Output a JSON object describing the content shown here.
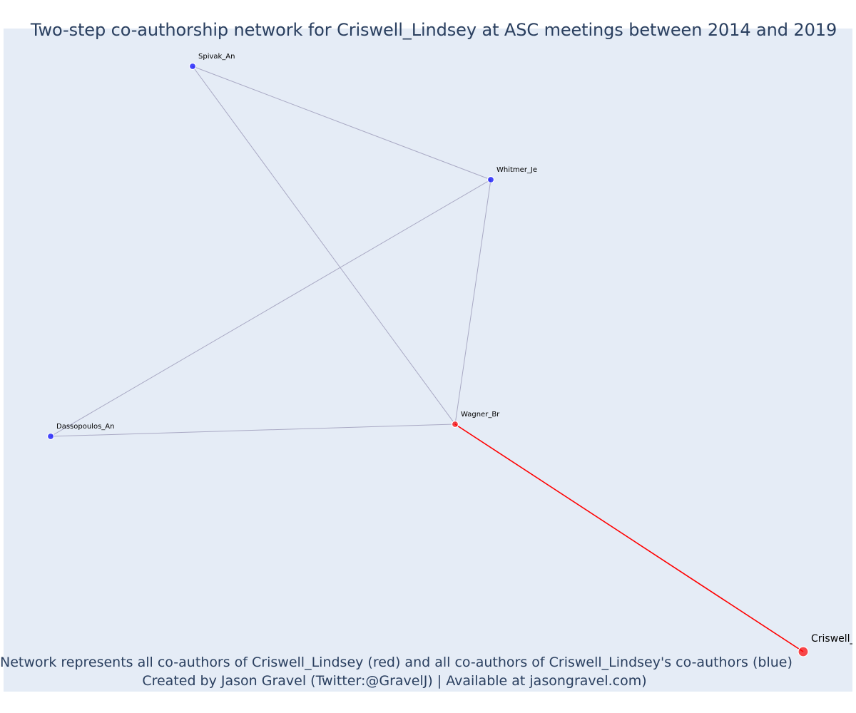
{
  "title": "Two-step co-authorship network for Criswell_Lindsey at ASC meetings between 2014 and 2019",
  "footnote": {
    "line1": "Network represents all co-authors of Criswell_Lindsey (red) and all co-authors of Criswell_Lindsey's co-authors (blue)",
    "line2": "Created by Jason Gravel (Twitter:@GravelJ) | Available at jasongravel.com)"
  },
  "colors": {
    "background": "#e5ecf6",
    "focal": "#ff0000",
    "first_degree": "#ff0000",
    "second_degree": "#0000ff",
    "edge": "#a9a9c4",
    "focal_edge": "#ff0000",
    "text": "#2a3f5f"
  },
  "nodes": [
    {
      "id": "Spivak_An",
      "label": "Spivak_An",
      "group": "second_degree"
    },
    {
      "id": "Whitmer_Je",
      "label": "Whitmer_Je",
      "group": "second_degree"
    },
    {
      "id": "Dassopoulos_An",
      "label": "Dassopoulos_An",
      "group": "second_degree"
    },
    {
      "id": "Wagner_Br",
      "label": "Wagner_Br",
      "group": "first_degree"
    },
    {
      "id": "Criswell_Lindsey",
      "label": "Criswell_Lindsey",
      "group": "focal"
    }
  ],
  "edges": [
    {
      "source": "Spivak_An",
      "target": "Whitmer_Je"
    },
    {
      "source": "Spivak_An",
      "target": "Wagner_Br"
    },
    {
      "source": "Whitmer_Je",
      "target": "Dassopoulos_An"
    },
    {
      "source": "Whitmer_Je",
      "target": "Wagner_Br"
    },
    {
      "source": "Dassopoulos_An",
      "target": "Wagner_Br"
    },
    {
      "source": "Wagner_Br",
      "target": "Criswell_Lindsey",
      "focal": true
    }
  ]
}
